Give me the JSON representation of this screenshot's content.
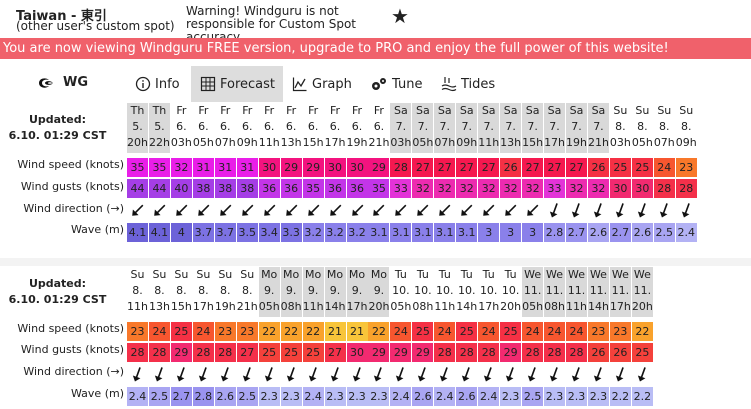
{
  "spot": {
    "name": "Taiwan - 東引",
    "subtitle": "(other user's custom spot)",
    "warning": "Warning! Windguru is not responsible for Custom Spot accuracy"
  },
  "banner": "You are now viewing Windguru FREE version, upgrade to PRO and enjoy the full power of this website!",
  "nav": {
    "logo": "WG",
    "items": [
      {
        "label": "Info",
        "icon": "info-icon",
        "active": false
      },
      {
        "label": "Forecast",
        "icon": "grid-icon",
        "active": true
      },
      {
        "label": "Graph",
        "icon": "graph-icon",
        "active": false
      },
      {
        "label": "Tune",
        "icon": "gears-icon",
        "active": false
      },
      {
        "label": "Tides",
        "icon": "tides-icon",
        "active": false
      }
    ]
  },
  "row_labels": {
    "wind_speed": "Wind speed (knots)",
    "wind_gusts": "Wind gusts (knots)",
    "wind_direction": "Wind direction (→)",
    "wave": "Wave (m)"
  },
  "tables": [
    {
      "updated_title": "Updated:",
      "updated_value": "6.10. 01:29 CST",
      "columns": [
        {
          "d": "Th",
          "n": "5.",
          "h": "20h",
          "ws": 35,
          "wg": 44,
          "dir": 225,
          "w": 4.1
        },
        {
          "d": "Th",
          "n": "5.",
          "h": "22h",
          "ws": 35,
          "wg": 44,
          "dir": 225,
          "w": 4.1
        },
        {
          "d": "Fr",
          "n": "6.",
          "h": "03h",
          "ws": 32,
          "wg": 40,
          "dir": 225,
          "w": 4
        },
        {
          "d": "Fr",
          "n": "6.",
          "h": "05h",
          "ws": 31,
          "wg": 38,
          "dir": 225,
          "w": 3.7
        },
        {
          "d": "Fr",
          "n": "6.",
          "h": "07h",
          "ws": 31,
          "wg": 38,
          "dir": 225,
          "w": 3.7
        },
        {
          "d": "Fr",
          "n": "6.",
          "h": "09h",
          "ws": 31,
          "wg": 38,
          "dir": 225,
          "w": 3.5
        },
        {
          "d": "Fr",
          "n": "6.",
          "h": "11h",
          "ws": 30,
          "wg": 36,
          "dir": 225,
          "w": 3.4
        },
        {
          "d": "Fr",
          "n": "6.",
          "h": "13h",
          "ws": 29,
          "wg": 36,
          "dir": 225,
          "w": 3.3
        },
        {
          "d": "Fr",
          "n": "6.",
          "h": "15h",
          "ws": 29,
          "wg": 35,
          "dir": 225,
          "w": 3.2
        },
        {
          "d": "Fr",
          "n": "6.",
          "h": "17h",
          "ws": 30,
          "wg": 36,
          "dir": 225,
          "w": 3.2
        },
        {
          "d": "Fr",
          "n": "6.",
          "h": "19h",
          "ws": 30,
          "wg": 36,
          "dir": 225,
          "w": 3.2
        },
        {
          "d": "Fr",
          "n": "6.",
          "h": "21h",
          "ws": 29,
          "wg": 35,
          "dir": 225,
          "w": 3.1
        },
        {
          "d": "Sa",
          "n": "7.",
          "h": "03h",
          "ws": 28,
          "wg": 33,
          "dir": 225,
          "w": 3.1
        },
        {
          "d": "Sa",
          "n": "7.",
          "h": "05h",
          "ws": 27,
          "wg": 32,
          "dir": 225,
          "w": 3.1
        },
        {
          "d": "Sa",
          "n": "7.",
          "h": "07h",
          "ws": 27,
          "wg": 32,
          "dir": 225,
          "w": 3.1
        },
        {
          "d": "Sa",
          "n": "7.",
          "h": "09h",
          "ws": 27,
          "wg": 32,
          "dir": 225,
          "w": 3.1
        },
        {
          "d": "Sa",
          "n": "7.",
          "h": "11h",
          "ws": 27,
          "wg": 32,
          "dir": 225,
          "w": 3
        },
        {
          "d": "Sa",
          "n": "7.",
          "h": "13h",
          "ws": 26,
          "wg": 32,
          "dir": 225,
          "w": 3
        },
        {
          "d": "Sa",
          "n": "7.",
          "h": "15h",
          "ws": 27,
          "wg": 32,
          "dir": 225,
          "w": 3
        },
        {
          "d": "Sa",
          "n": "7.",
          "h": "17h",
          "ws": 27,
          "wg": 33,
          "dir": 200,
          "w": 2.8
        },
        {
          "d": "Sa",
          "n": "7.",
          "h": "19h",
          "ws": 27,
          "wg": 32,
          "dir": 200,
          "w": 2.7
        },
        {
          "d": "Sa",
          "n": "7.",
          "h": "21h",
          "ws": 26,
          "wg": 32,
          "dir": 200,
          "w": 2.6
        },
        {
          "d": "Su",
          "n": "8.",
          "h": "03h",
          "ws": 25,
          "wg": 30,
          "dir": 200,
          "w": 2.7
        },
        {
          "d": "Su",
          "n": "8.",
          "h": "05h",
          "ws": 25,
          "wg": 30,
          "dir": 200,
          "w": 2.6
        },
        {
          "d": "Su",
          "n": "8.",
          "h": "07h",
          "ws": 24,
          "wg": 28,
          "dir": 200,
          "w": 2.5
        },
        {
          "d": "Su",
          "n": "8.",
          "h": "09h",
          "ws": 23,
          "wg": 28,
          "dir": 200,
          "w": 2.4
        }
      ]
    },
    {
      "updated_title": "Updated:",
      "updated_value": "6.10. 01:29 CST",
      "columns": [
        {
          "d": "Su",
          "n": "8.",
          "h": "11h",
          "ws": 23,
          "wg": 28,
          "dir": 200,
          "w": 2.4
        },
        {
          "d": "Su",
          "n": "8.",
          "h": "13h",
          "ws": 24,
          "wg": 28,
          "dir": 200,
          "w": 2.5
        },
        {
          "d": "Su",
          "n": "8.",
          "h": "15h",
          "ws": 25,
          "wg": 29,
          "dir": 200,
          "w": 2.7
        },
        {
          "d": "Su",
          "n": "8.",
          "h": "17h",
          "ws": 24,
          "wg": 28,
          "dir": 200,
          "w": 2.8
        },
        {
          "d": "Su",
          "n": "8.",
          "h": "19h",
          "ws": 23,
          "wg": 28,
          "dir": 200,
          "w": 2.6
        },
        {
          "d": "Su",
          "n": "8.",
          "h": "21h",
          "ws": 23,
          "wg": 27,
          "dir": 200,
          "w": 2.5
        },
        {
          "d": "Mo",
          "n": "9.",
          "h": "05h",
          "ws": 22,
          "wg": 25,
          "dir": 200,
          "w": 2.3
        },
        {
          "d": "Mo",
          "n": "9.",
          "h": "08h",
          "ws": 22,
          "wg": 25,
          "dir": 200,
          "w": 2.3
        },
        {
          "d": "Mo",
          "n": "9.",
          "h": "11h",
          "ws": 22,
          "wg": 25,
          "dir": 200,
          "w": 2.4
        },
        {
          "d": "Mo",
          "n": "9.",
          "h": "14h",
          "ws": 21,
          "wg": 27,
          "dir": 200,
          "w": 2.3
        },
        {
          "d": "Mo",
          "n": "9.",
          "h": "17h",
          "ws": 21,
          "wg": 30,
          "dir": 200,
          "w": 2.3
        },
        {
          "d": "Mo",
          "n": "9.",
          "h": "20h",
          "ws": 22,
          "wg": 29,
          "dir": 200,
          "w": 2.3
        },
        {
          "d": "Tu",
          "n": "10.",
          "h": "05h",
          "ws": 24,
          "wg": 29,
          "dir": 200,
          "w": 2.4
        },
        {
          "d": "Tu",
          "n": "10.",
          "h": "08h",
          "ws": 25,
          "wg": 29,
          "dir": 200,
          "w": 2.6
        },
        {
          "d": "Tu",
          "n": "10.",
          "h": "11h",
          "ws": 24,
          "wg": 28,
          "dir": 200,
          "w": 2.4
        },
        {
          "d": "Tu",
          "n": "10.",
          "h": "14h",
          "ws": 25,
          "wg": 28,
          "dir": 200,
          "w": 2.6
        },
        {
          "d": "Tu",
          "n": "10.",
          "h": "17h",
          "ws": 24,
          "wg": 28,
          "dir": 200,
          "w": 2.4
        },
        {
          "d": "Tu",
          "n": "10.",
          "h": "20h",
          "ws": 25,
          "wg": 29,
          "dir": 200,
          "w": 2.3
        },
        {
          "d": "We",
          "n": "11.",
          "h": "05h",
          "ws": 24,
          "wg": 28,
          "dir": 200,
          "w": 2.5
        },
        {
          "d": "We",
          "n": "11.",
          "h": "08h",
          "ws": 24,
          "wg": 28,
          "dir": 200,
          "w": 2.3
        },
        {
          "d": "We",
          "n": "11.",
          "h": "11h",
          "ws": 24,
          "wg": 28,
          "dir": 200,
          "w": 2.3
        },
        {
          "d": "We",
          "n": "11.",
          "h": "14h",
          "ws": 23,
          "wg": 26,
          "dir": 200,
          "w": 2.3
        },
        {
          "d": "We",
          "n": "11.",
          "h": "17h",
          "ws": 23,
          "wg": 26,
          "dir": 200,
          "w": 2.2
        },
        {
          "d": "We",
          "n": "11.",
          "h": "20h",
          "ws": 22,
          "wg": 25,
          "dir": 200,
          "w": 2.2
        }
      ]
    }
  ],
  "colors": {
    "banner": "#f0616b",
    "nav_active": "#dddddd",
    "day_header_odd": "#d9d9d9",
    "day_header_even": "#ffffff"
  }
}
